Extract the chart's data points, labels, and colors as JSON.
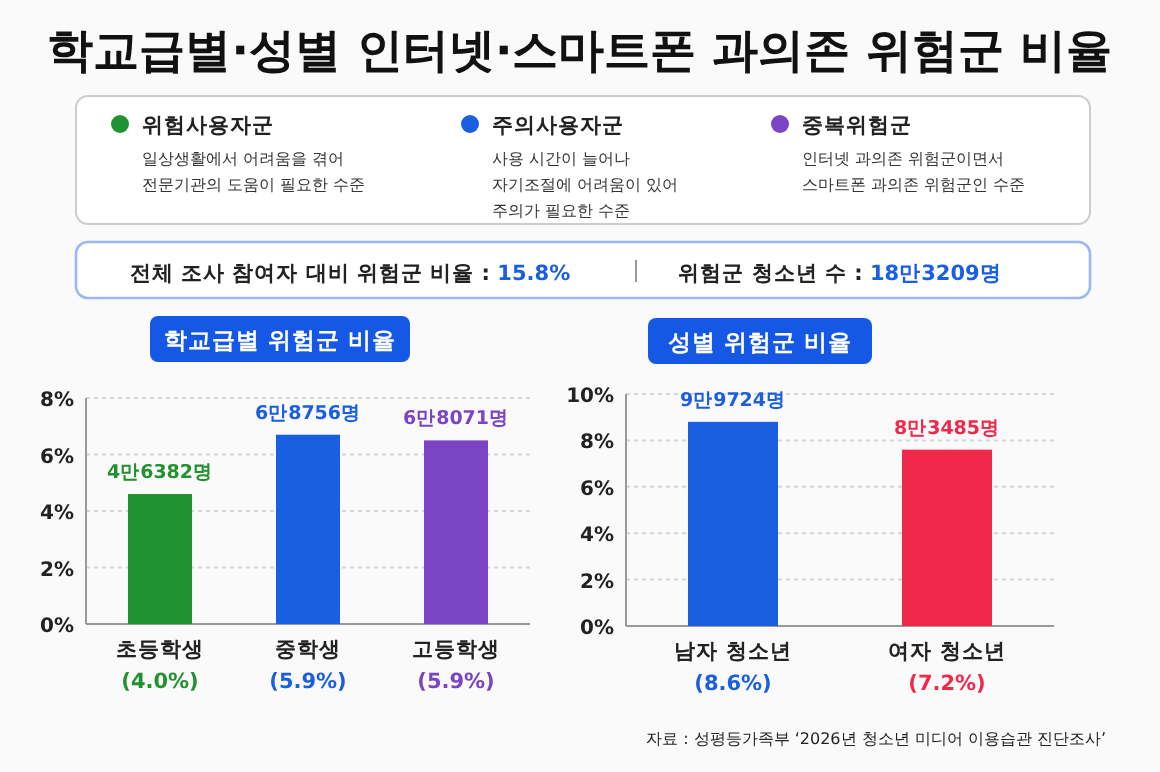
{
  "chart_data": [
    {
      "type": "other",
      "title": "학교급별·성별 인터넷·스마트폰 과의존 위험군 비율",
      "categories": [
        "위험사용자군",
        "주의사용자군",
        "중복위험군"
      ],
      "colors": [
        "#22912f",
        "#1a5fe0",
        "#7b44c4"
      ],
      "annotations": [
        "일상생활에서 어려움을 겪어\n전문기관의 도움이 필요한 수준",
        "사용 시간이 늘어나\n자기조절에 어려움이 있어\n주의가 필요한 수준",
        "인터넷 과의존 위험군이면서\n스마트폰 과의존 위험군인 수준",
        "전체 조사 참여자 대비 위험군 비율 : 15.8%",
        "위험군 청소년 수 : 18만3209명"
      ]
    },
    {
      "type": "bar",
      "title": "학교급별 위험군 비율",
      "categories": [
        "초등학생",
        "중학생",
        "고등학생"
      ],
      "values": [
        4.6,
        6.7,
        6.5
      ],
      "colors": [
        "#22912f",
        "#1a5fe0",
        "#7b44c4"
      ],
      "ylim": [
        0,
        8
      ],
      "yticks": [
        {
          "value": 0,
          "label": "0%"
        },
        {
          "value": 2,
          "label": "2%"
        },
        {
          "value": 4,
          "label": "4%"
        },
        {
          "value": 6,
          "label": "6%"
        },
        {
          "value": 8,
          "label": "8%"
        }
      ],
      "grid": "y",
      "annotations": [
        "4만6382명",
        "6만8756명",
        "6만8071명",
        "(4.0%)",
        "(5.9%)",
        "(5.9%)"
      ]
    },
    {
      "type": "bar",
      "title": "성별 위험군 비율",
      "categories": [
        "남자 청소년",
        "여자 청소년"
      ],
      "values": [
        8.8,
        7.6
      ],
      "colors": [
        "#1a5fe0",
        "#f0284a"
      ],
      "ylim": [
        0,
        10
      ],
      "yticks": [
        {
          "value": 0,
          "label": "0%"
        },
        {
          "value": 2,
          "label": "2%"
        },
        {
          "value": 4,
          "label": "4%"
        },
        {
          "value": 6,
          "label": "6%"
        },
        {
          "value": 8,
          "label": "8%"
        },
        {
          "value": 10,
          "label": "10%"
        }
      ],
      "grid": "y",
      "annotations": [
        "9만9724명",
        "8만3485명",
        "(8.6%)",
        "(7.2%)",
        "자료 : 성평등가족부 ‘2026년 청소년 미디어 이용습관 진단조사’"
      ]
    }
  ]
}
